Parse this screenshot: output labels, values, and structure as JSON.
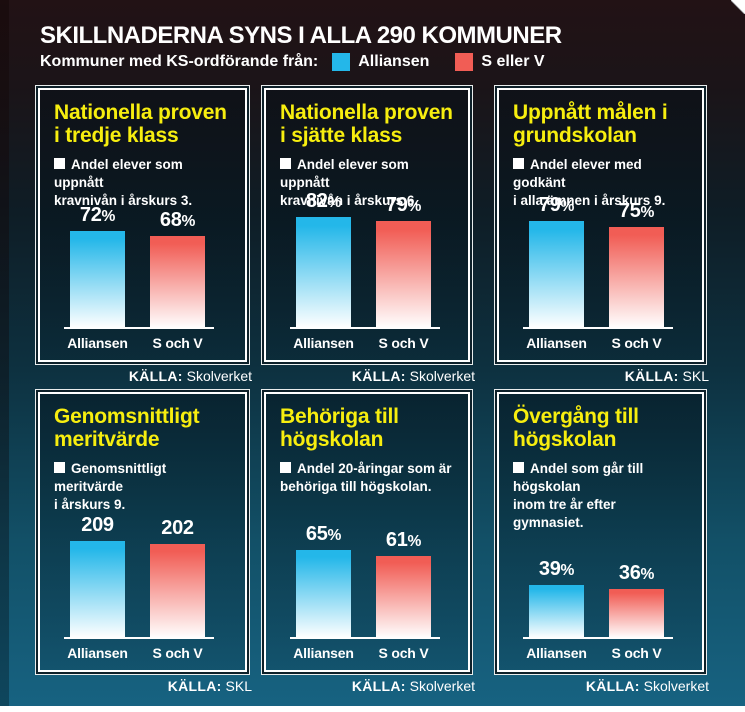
{
  "header": {
    "title": "SKILLNADERNA SYNS I ALLA 290 KOMMUNER",
    "legend_label": "Kommuner med KS-ordförande från:",
    "legend": [
      {
        "label": "Alliansen",
        "color": "#24b7e9"
      },
      {
        "label": "S eller V",
        "color": "#f15d55"
      }
    ]
  },
  "source_prefix": "KÄLLA:",
  "colors": {
    "panel_title_yellow": "#f7ee0f",
    "background_top": "#211214",
    "background_bottom_teal": "#176382",
    "bar_fade_to": "#ffffff",
    "text_white": "#ffffff"
  },
  "panels": [
    {
      "title": "Nationella proven\ni tredje klass",
      "description": "Andel elever som uppnått\nkravnivån i årskurs 3.",
      "source": "Skolverket"
    },
    {
      "title": "Nationella proven\ni sjätte klass",
      "description": "Andel elever som uppnått\nkravnivån i årskurs 6.",
      "source": "Skolverket"
    },
    {
      "title": "Uppnått målen i\ngrundskolan",
      "description": "Andel elever med godkänt\ni alla ämnen i årskurs 9.",
      "source": "SKL"
    },
    {
      "title": "Genomsnittligt\nmeritvärde",
      "description": "Genomsnittligt meritvärde\ni årskurs 9.",
      "source": "SKL"
    },
    {
      "title": "Behöriga till\nhögskolan",
      "description": "Andel 20-åringar som är\nbehöriga till högskolan.",
      "source": "Skolverket"
    },
    {
      "title": "Övergång till\nhögskolan",
      "description": "Andel som går till högskolan\ninom tre år efter gymnasiet.",
      "source": "Skolverket"
    }
  ],
  "chart_data": [
    {
      "type": "bar",
      "title": "Nationella proven i tredje klass",
      "categories": [
        "Alliansen",
        "S och V"
      ],
      "values": [
        72,
        68
      ],
      "labels": [
        "72%",
        "68%"
      ],
      "ylim": [
        0,
        100
      ],
      "source": "Skolverket"
    },
    {
      "type": "bar",
      "title": "Nationella proven i sjätte klass",
      "categories": [
        "Alliansen",
        "S och V"
      ],
      "values": [
        82,
        79
      ],
      "labels": [
        "82%",
        "79%"
      ],
      "ylim": [
        0,
        100
      ],
      "source": "Skolverket"
    },
    {
      "type": "bar",
      "title": "Uppnått målen i grundskolan",
      "categories": [
        "Alliansen",
        "S och V"
      ],
      "values": [
        79,
        75
      ],
      "labels": [
        "79%",
        "75%"
      ],
      "ylim": [
        0,
        100
      ],
      "source": "SKL"
    },
    {
      "type": "bar",
      "title": "Genomsnittligt meritvärde",
      "categories": [
        "Alliansen",
        "S och V"
      ],
      "values": [
        209,
        202
      ],
      "labels": [
        "209",
        "202"
      ],
      "ylim": [
        0,
        290
      ],
      "source": "SKL"
    },
    {
      "type": "bar",
      "title": "Behöriga till högskolan",
      "categories": [
        "Alliansen",
        "S och V"
      ],
      "values": [
        65,
        61
      ],
      "labels": [
        "65%",
        "61%"
      ],
      "ylim": [
        0,
        100
      ],
      "source": "Skolverket"
    },
    {
      "type": "bar",
      "title": "Övergång till högskolan",
      "categories": [
        "Alliansen",
        "S och V"
      ],
      "values": [
        39,
        36
      ],
      "labels": [
        "39%",
        "36%"
      ],
      "ylim": [
        0,
        100
      ],
      "source": "Skolverket"
    }
  ]
}
